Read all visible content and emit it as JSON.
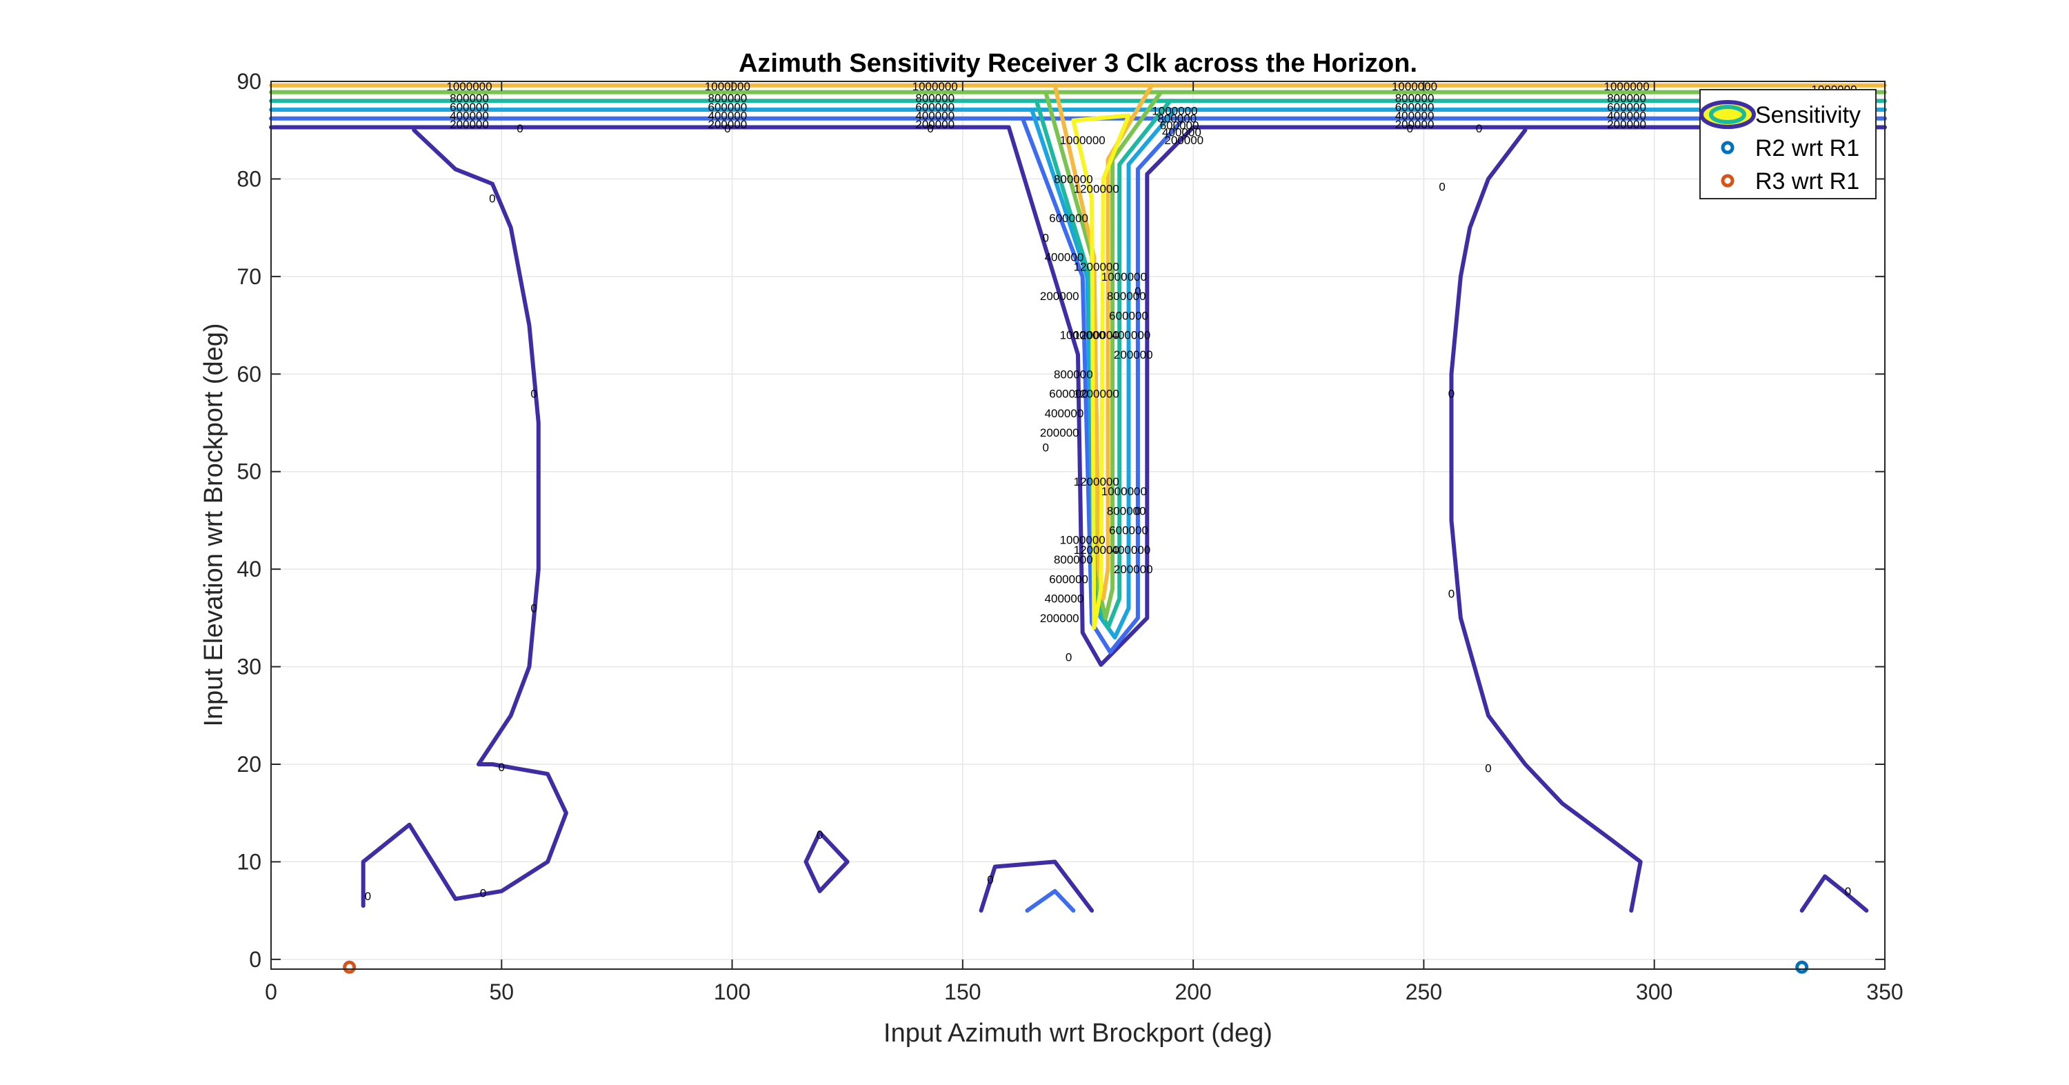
{
  "chart_data": {
    "type": "contour",
    "title": "Azimuth Sensitivity Receiver 3 Clk across the Horizon.",
    "xlabel": "Input Azimuth wrt Brockport (deg)",
    "ylabel": "Input Elevation wrt Brockport (deg)",
    "xlim": [
      0,
      350
    ],
    "ylim": [
      -1,
      90
    ],
    "xticks": [
      0,
      50,
      100,
      150,
      200,
      250,
      300,
      350
    ],
    "yticks": [
      0,
      10,
      20,
      30,
      40,
      50,
      60,
      70,
      80,
      90
    ],
    "grid": true,
    "legend_position": "top-right",
    "legend": [
      {
        "label": "Sensitivity",
        "marker": "contour"
      },
      {
        "label": "R2 wrt R1",
        "marker": "circle",
        "color": "#0072BD"
      },
      {
        "label": "R3 wrt R1",
        "marker": "circle",
        "color": "#D95319"
      }
    ],
    "contour_levels": [
      {
        "level": 0,
        "color": "#3F2DA6"
      },
      {
        "level": 200000,
        "color": "#3D6CF0"
      },
      {
        "level": 400000,
        "color": "#1BA5E0"
      },
      {
        "level": 600000,
        "color": "#1CB9A0"
      },
      {
        "level": 800000,
        "color": "#79C34F"
      },
      {
        "level": 1000000,
        "color": "#F5B93D"
      },
      {
        "level": 1200000,
        "color": "#F9F51E"
      }
    ],
    "contour_lines": [
      {
        "level": 0,
        "points": [
          [
            0,
            85.3
          ],
          [
            160,
            85.3
          ],
          [
            175,
            62
          ],
          [
            176,
            33.5
          ],
          [
            180,
            30.2
          ],
          [
            190,
            35
          ],
          [
            190,
            80.5
          ],
          [
            200,
            85.3
          ],
          [
            350,
            85.3
          ]
        ]
      },
      {
        "level": 200000,
        "points": [
          [
            0,
            86.2
          ],
          [
            200,
            86.2
          ],
          [
            200,
            86.2
          ],
          [
            350,
            86.2
          ]
        ]
      },
      {
        "level": 200000,
        "points": [
          [
            163,
            86.2
          ],
          [
            176,
            70
          ],
          [
            178,
            34.5
          ],
          [
            182,
            31.5
          ],
          [
            188,
            35
          ],
          [
            188,
            81
          ],
          [
            198,
            86.2
          ]
        ]
      },
      {
        "level": 400000,
        "points": [
          [
            0,
            87.1
          ],
          [
            350,
            87.1
          ]
        ]
      },
      {
        "level": 400000,
        "points": [
          [
            165,
            87.1
          ],
          [
            177,
            70
          ],
          [
            178.5,
            36
          ],
          [
            183,
            33
          ],
          [
            186,
            36
          ],
          [
            186,
            81.5
          ],
          [
            196,
            87.1
          ]
        ]
      },
      {
        "level": 600000,
        "points": [
          [
            0,
            88.0
          ],
          [
            350,
            88.0
          ]
        ]
      },
      {
        "level": 600000,
        "points": [
          [
            166,
            88
          ],
          [
            177.5,
            70
          ],
          [
            179,
            37
          ],
          [
            181.5,
            34
          ],
          [
            184,
            37
          ],
          [
            184,
            81.5
          ],
          [
            195,
            88
          ]
        ]
      },
      {
        "level": 800000,
        "points": [
          [
            0,
            88.9
          ],
          [
            350,
            88.9
          ]
        ]
      },
      {
        "level": 800000,
        "points": [
          [
            168,
            88.9
          ],
          [
            178,
            72
          ],
          [
            179.5,
            38
          ],
          [
            181,
            35
          ],
          [
            182.5,
            38
          ],
          [
            182.5,
            82
          ],
          [
            193,
            88.9
          ]
        ]
      },
      {
        "level": 1000000,
        "points": [
          [
            0,
            89.6
          ],
          [
            350,
            89.6
          ]
        ]
      },
      {
        "level": 1000000,
        "points": [
          [
            170,
            89.6
          ],
          [
            178.5,
            72
          ],
          [
            179.5,
            40
          ],
          [
            180.5,
            37
          ],
          [
            181.5,
            40
          ],
          [
            181.5,
            82
          ],
          [
            191,
            89.6
          ]
        ]
      },
      {
        "level": 1200000,
        "points": [
          [
            174,
            86
          ],
          [
            186,
            86.5
          ],
          [
            180.5,
            80
          ],
          [
            180,
            38
          ],
          [
            178.5,
            34
          ],
          [
            178,
            78
          ],
          [
            174,
            86
          ]
        ]
      },
      {
        "level": 0,
        "points": [
          [
            31,
            85
          ],
          [
            40,
            81
          ],
          [
            48,
            79.5
          ],
          [
            52,
            75
          ],
          [
            56,
            65
          ],
          [
            58,
            55
          ],
          [
            58,
            40
          ],
          [
            56,
            30
          ],
          [
            52,
            25
          ],
          [
            45,
            20
          ],
          [
            48,
            20
          ],
          [
            60,
            19
          ],
          [
            64,
            15
          ],
          [
            60,
            10
          ],
          [
            50,
            7
          ],
          [
            40,
            6.2
          ],
          [
            35,
            10
          ],
          [
            30,
            13.8
          ],
          [
            20,
            10
          ],
          [
            20,
            5.5
          ]
        ]
      },
      {
        "level": 0,
        "points": [
          [
            119,
            13
          ],
          [
            116,
            10
          ],
          [
            119,
            7
          ],
          [
            125,
            10
          ],
          [
            119,
            13
          ]
        ]
      },
      {
        "level": 0,
        "points": [
          [
            154,
            5
          ],
          [
            157,
            9.5
          ],
          [
            170,
            10
          ],
          [
            178,
            5
          ]
        ]
      },
      {
        "level": 200000,
        "points": [
          [
            164,
            5
          ],
          [
            170,
            7
          ],
          [
            174,
            5
          ]
        ]
      },
      {
        "level": 0,
        "points": [
          [
            272,
            85
          ],
          [
            264,
            80
          ],
          [
            260,
            75
          ],
          [
            258,
            70
          ],
          [
            256,
            60
          ],
          [
            256,
            45
          ],
          [
            258,
            35
          ],
          [
            264,
            25
          ],
          [
            272,
            20
          ],
          [
            280,
            16
          ],
          [
            290,
            12.5
          ],
          [
            297,
            10
          ],
          [
            295,
            5
          ]
        ]
      },
      {
        "level": 0,
        "points": [
          [
            332,
            5
          ],
          [
            337,
            8.5
          ],
          [
            341,
            7
          ],
          [
            346,
            5
          ]
        ]
      }
    ],
    "contour_labels": [
      {
        "text": "1000000",
        "x": 43,
        "y": 89.5
      },
      {
        "text": "800000",
        "x": 43,
        "y": 88.3
      },
      {
        "text": "600000",
        "x": 43,
        "y": 87.4
      },
      {
        "text": "400000",
        "x": 43,
        "y": 86.5
      },
      {
        "text": "200000",
        "x": 43,
        "y": 85.6
      },
      {
        "text": "0",
        "x": 54,
        "y": 85.2
      },
      {
        "text": "1000000",
        "x": 99,
        "y": 89.5
      },
      {
        "text": "800000",
        "x": 99,
        "y": 88.3
      },
      {
        "text": "600000",
        "x": 99,
        "y": 87.4
      },
      {
        "text": "400000",
        "x": 99,
        "y": 86.5
      },
      {
        "text": "200000",
        "x": 99,
        "y": 85.6
      },
      {
        "text": "0",
        "x": 99,
        "y": 85.2
      },
      {
        "text": "1000000",
        "x": 144,
        "y": 89.5
      },
      {
        "text": "800000",
        "x": 144,
        "y": 88.3
      },
      {
        "text": "600000",
        "x": 144,
        "y": 87.4
      },
      {
        "text": "400000",
        "x": 144,
        "y": 86.5
      },
      {
        "text": "200000",
        "x": 144,
        "y": 85.6
      },
      {
        "text": "0",
        "x": 143,
        "y": 85.2
      },
      {
        "text": "1000000",
        "x": 248,
        "y": 89.5
      },
      {
        "text": "800000",
        "x": 248,
        "y": 88.3
      },
      {
        "text": "600000",
        "x": 248,
        "y": 87.4
      },
      {
        "text": "400000",
        "x": 248,
        "y": 86.5
      },
      {
        "text": "200000",
        "x": 248,
        "y": 85.6
      },
      {
        "text": "0",
        "x": 247,
        "y": 85.2
      },
      {
        "text": "1000000",
        "x": 294,
        "y": 89.5
      },
      {
        "text": "800000",
        "x": 294,
        "y": 88.3
      },
      {
        "text": "600000",
        "x": 294,
        "y": 87.4
      },
      {
        "text": "400000",
        "x": 294,
        "y": 86.5
      },
      {
        "text": "200000",
        "x": 294,
        "y": 85.6
      },
      {
        "text": "0",
        "x": 262,
        "y": 85.2
      },
      {
        "text": "1000000",
        "x": 339,
        "y": 89.2
      },
      {
        "text": "0",
        "x": 48,
        "y": 78
      },
      {
        "text": "0",
        "x": 57,
        "y": 58
      },
      {
        "text": "0",
        "x": 57,
        "y": 36
      },
      {
        "text": "0",
        "x": 50,
        "y": 19.7
      },
      {
        "text": "0",
        "x": 46,
        "y": 6.8
      },
      {
        "text": "0",
        "x": 21,
        "y": 6.5
      },
      {
        "text": "0",
        "x": 119,
        "y": 12.8
      },
      {
        "text": "0",
        "x": 156,
        "y": 8.2
      },
      {
        "text": "0",
        "x": 168,
        "y": 74
      },
      {
        "text": "0",
        "x": 168,
        "y": 52.5
      },
      {
        "text": "0",
        "x": 173,
        "y": 31
      },
      {
        "text": "0",
        "x": 188,
        "y": 68.5
      },
      {
        "text": "0",
        "x": 188,
        "y": 46
      },
      {
        "text": "0",
        "x": 256,
        "y": 58
      },
      {
        "text": "0",
        "x": 256,
        "y": 37.5
      },
      {
        "text": "0",
        "x": 264,
        "y": 19.6
      },
      {
        "text": "0",
        "x": 254,
        "y": 79.2
      },
      {
        "text": "0",
        "x": 342,
        "y": 7
      },
      {
        "text": "1200000",
        "x": 179,
        "y": 79
      },
      {
        "text": "1200000",
        "x": 179,
        "y": 71
      },
      {
        "text": "1200000",
        "x": 179,
        "y": 64
      },
      {
        "text": "1200000",
        "x": 179,
        "y": 58
      },
      {
        "text": "1200000",
        "x": 179,
        "y": 49
      },
      {
        "text": "1200000",
        "x": 179,
        "y": 42
      },
      {
        "text": "1000000",
        "x": 176,
        "y": 84
      },
      {
        "text": "800000",
        "x": 174,
        "y": 80
      },
      {
        "text": "600000",
        "x": 173,
        "y": 76
      },
      {
        "text": "400000",
        "x": 172,
        "y": 72
      },
      {
        "text": "200000",
        "x": 171,
        "y": 68
      },
      {
        "text": "1000000",
        "x": 176,
        "y": 64
      },
      {
        "text": "800000",
        "x": 174,
        "y": 60
      },
      {
        "text": "600000",
        "x": 173,
        "y": 58
      },
      {
        "text": "400000",
        "x": 172,
        "y": 56
      },
      {
        "text": "200000",
        "x": 171,
        "y": 54
      },
      {
        "text": "1000000",
        "x": 176,
        "y": 43
      },
      {
        "text": "800000",
        "x": 174,
        "y": 41
      },
      {
        "text": "600000",
        "x": 173,
        "y": 39
      },
      {
        "text": "400000",
        "x": 172,
        "y": 37
      },
      {
        "text": "200000",
        "x": 171,
        "y": 35
      },
      {
        "text": "1000000",
        "x": 185,
        "y": 70
      },
      {
        "text": "800000",
        "x": 185.5,
        "y": 68
      },
      {
        "text": "600000",
        "x": 186,
        "y": 66
      },
      {
        "text": "400000",
        "x": 186.5,
        "y": 64
      },
      {
        "text": "200000",
        "x": 187,
        "y": 62
      },
      {
        "text": "1000000",
        "x": 185,
        "y": 48
      },
      {
        "text": "800000",
        "x": 185.5,
        "y": 46
      },
      {
        "text": "600000",
        "x": 186,
        "y": 44
      },
      {
        "text": "400000",
        "x": 186.5,
        "y": 42
      },
      {
        "text": "200000",
        "x": 187,
        "y": 40
      },
      {
        "text": "1000000",
        "x": 196,
        "y": 87
      },
      {
        "text": "800000",
        "x": 196.5,
        "y": 86.2
      },
      {
        "text": "600000",
        "x": 197,
        "y": 85.5
      },
      {
        "text": "400000",
        "x": 197.5,
        "y": 84.8
      },
      {
        "text": "200000",
        "x": 198,
        "y": 84
      }
    ],
    "scatter_series": [
      {
        "name": "R2 wrt R1",
        "color": "#0072BD",
        "points": [
          [
            332,
            -0.8
          ]
        ]
      },
      {
        "name": "R3 wrt R1",
        "color": "#D95319",
        "points": [
          [
            17,
            -0.8
          ]
        ]
      }
    ]
  }
}
